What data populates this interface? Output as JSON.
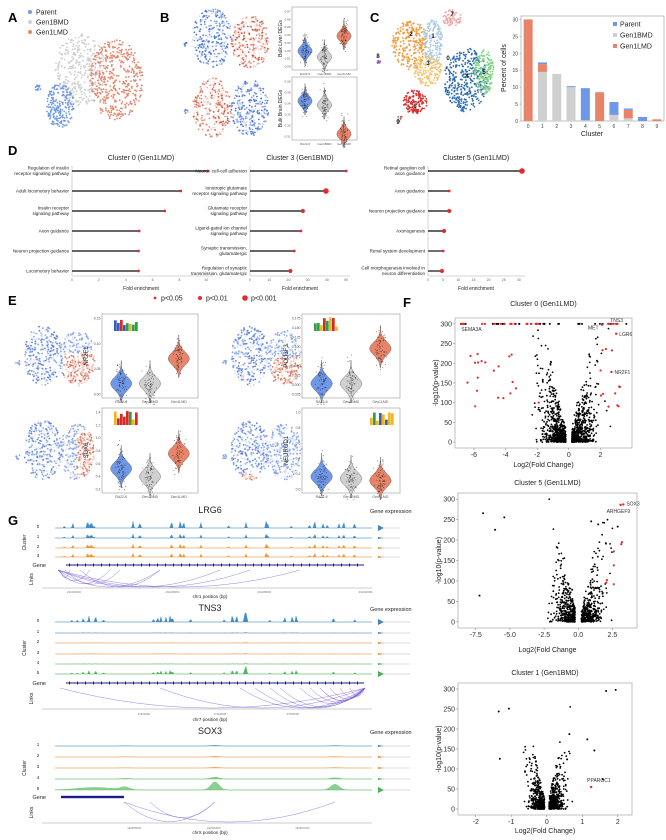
{
  "panel_labels": {
    "A": "A",
    "B": "B",
    "C": "C",
    "D": "D",
    "E": "E",
    "F": "F",
    "G": "G"
  },
  "colors": {
    "parent": "#6f98e8",
    "gen1bmd": "#d0d0d0",
    "gen1lmd": "#e8846a",
    "significant": "#e8282a"
  },
  "chart_data": {
    "umap_groups": {
      "type": "scatter",
      "legend": [
        "Parent",
        "Gen1BMD",
        "Gen1LMD"
      ]
    },
    "bulk_violins": [
      {
        "type": "violin",
        "ylabel": "Bulk Liver DEGs",
        "categories": [
          "RA22-6",
          "Gen1BMD",
          "Gen1LMD"
        ],
        "yticks": [
          "0.00",
          "0.01",
          "0.02",
          "0.03",
          "0.04",
          "0.05",
          "0.06",
          "0.07"
        ],
        "medians": [
          0.025,
          0.018,
          0.045
        ]
      },
      {
        "type": "violin",
        "ylabel": "Bulk Brain DEGs",
        "categories": [
          "RA22-6",
          "Gen1BMD",
          "Gen1LMD"
        ],
        "yticks": [
          "0.31",
          "0.32",
          "0.33",
          "0.34",
          "0.35",
          "0.36"
        ],
        "medians": [
          0.335,
          0.332,
          0.312
        ]
      }
    ],
    "cluster_umap": {
      "type": "scatter",
      "cluster_labels": [
        "0",
        "1",
        "2",
        "3",
        "4",
        "5",
        "6",
        "7",
        "8",
        "9"
      ]
    },
    "cluster_composition": {
      "type": "bar",
      "stacked": true,
      "xlabel": "Cluster",
      "ylabel": "Percent of cells",
      "ylim": [
        0,
        31
      ],
      "yticks": [
        "0",
        "5",
        "10",
        "15",
        "20",
        "25",
        "30"
      ],
      "categories": [
        "0",
        "1",
        "2",
        "3",
        "4",
        "5",
        "6",
        "7",
        "8",
        "9"
      ],
      "legend_position": "top-right",
      "series": [
        {
          "name": "Gen1BMD",
          "values": [
            0,
            14.5,
            13.9,
            10.0,
            0.2,
            0,
            1.8,
            0.8,
            0,
            0
          ]
        },
        {
          "name": "Gen1LMD",
          "values": [
            30.0,
            2.3,
            0,
            0,
            0,
            8.5,
            0,
            2.5,
            0,
            0.5
          ]
        },
        {
          "name": "Parent",
          "values": [
            0,
            0.5,
            0,
            0.3,
            9.5,
            0,
            3.8,
            0.4,
            1.2,
            0
          ]
        }
      ]
    },
    "go_enrichment": [
      {
        "type": "lollipop",
        "title": "Cluster 0 (Gen1LMD)",
        "xlabel": "Fold enrichment",
        "xlim": [
          0,
          10.5
        ],
        "xticks": [
          "0",
          "2",
          "4",
          "6",
          "8",
          "10"
        ],
        "terms": [
          "Regulation of insulin receptor signaling pathway",
          "Adult locomotory behavior",
          "Insulin receptor signaling pathway",
          "Axon guidance",
          "Neuron projection guidance",
          "Locomotory behavior"
        ],
        "values": [
          10.1,
          8.1,
          6.9,
          5.0,
          4.95,
          4.95
        ],
        "pvalue_class": [
          0,
          0,
          0,
          0,
          0,
          0
        ]
      },
      {
        "type": "lollipop",
        "title": "Cluster 3 (Gen1BMD)",
        "xlabel": "Fold enrichment",
        "xlim": [
          0,
          52
        ],
        "xticks": [
          "0",
          "10",
          "20",
          "30",
          "40",
          "50"
        ],
        "terms": [
          "Neuron cell-cell adhesion",
          "Ionotropic glutamate receptor signaling pathway",
          "Glutamate receptor signaling pathway",
          "Ligand-gated ion channel signaling pathway",
          "Synaptic transmission, glutamatergic",
          "Regulation of synaptic transmission, glutamatergic"
        ],
        "values": [
          50,
          39.5,
          27.5,
          26.5,
          23,
          21
        ],
        "pvalue_class": [
          0,
          2,
          1,
          0,
          0,
          1
        ]
      },
      {
        "type": "lollipop",
        "title": "Cluster 5 (Gen1LMD)",
        "xlabel": "Fold enrichment",
        "xlim": [
          0,
          32
        ],
        "xticks": [
          "0",
          "5",
          "10",
          "15",
          "20",
          "25",
          "30"
        ],
        "terms": [
          "Retinal ganglion cell axon guidance",
          "Axon guidance",
          "Neuron projection guidance",
          "Axonogenesis",
          "Renal system development",
          "Cell morphogenesis involved in neuron differentiation"
        ],
        "values": [
          31,
          7,
          7,
          5.3,
          5,
          4.6
        ],
        "pvalue_class": [
          2,
          0,
          1,
          1,
          0,
          1
        ]
      }
    ],
    "pvalue_legend": [
      "p<0.05",
      "p<0.01",
      "p<0.001"
    ],
    "regulon_violins": [
      {
        "type": "violin",
        "ylabel": "NR2F1",
        "categories": [
          "RA22-6",
          "Gen1BMD",
          "Gen1LMD"
        ],
        "yticks": [
          "0.00",
          "0.05",
          "0.10",
          "0.15"
        ],
        "ylim": [
          -0.02,
          0.17
        ],
        "medians": [
          0.015,
          0.012,
          0.07
        ]
      },
      {
        "type": "violin",
        "ylabel": "POU3F3",
        "categories": [
          "RA22-6",
          "Gen1BMD",
          "Gen1LMD"
        ],
        "yticks": [
          "-0.025",
          "0.000",
          "0.025",
          "0.050",
          "0.075",
          "0.100",
          "0.125",
          "0.150",
          "0.175"
        ],
        "ylim": [
          -0.03,
          0.18
        ],
        "medians": [
          0.012,
          0.01,
          0.085
        ]
      },
      {
        "type": "violin",
        "ylabel": "SOX6",
        "categories": [
          "RA22-6",
          "Gen1BMD",
          "Gen1LMD"
        ],
        "yticks": [
          "0.2",
          "0.4",
          "0.6",
          "0.8",
          "1.0",
          "1.2",
          "1.4"
        ],
        "ylim": [
          0.15,
          1.45
        ],
        "medians": [
          0.55,
          0.42,
          0.75
        ]
      },
      {
        "type": "violin",
        "ylabel": "NEUROD1",
        "categories": [
          "RA22-6",
          "Gen1BMD",
          "Gen1LMD"
        ],
        "yticks": [
          "0.0",
          "0.2",
          "0.4",
          "0.6",
          "0.8",
          "1.0"
        ],
        "ylim": [
          -0.08,
          1.08
        ],
        "medians": [
          0.1,
          0.08,
          0.07
        ]
      }
    ],
    "volcanoes": [
      {
        "type": "scatter",
        "title": "Cluster 0 (Gen1LMD)",
        "xlabel": "Log2(Fold Change)",
        "ylabel": "-log10(p-value)",
        "xlim": [
          -7.2,
          4.0
        ],
        "ylim": [
          -15,
          315
        ],
        "xticks": [
          "-6",
          "-4",
          "-2",
          "0",
          "2"
        ],
        "xtick_values": [
          -6,
          -4,
          -2,
          0,
          2
        ],
        "yticks": [
          "0",
          "50",
          "100",
          "150",
          "200",
          "250",
          "300"
        ],
        "labeled_genes": [
          {
            "gene": "SEMA3A",
            "x": -6.8,
            "y": 300
          },
          {
            "gene": "TNS3",
            "x": 3.0,
            "y": 300
          },
          {
            "gene": "MET",
            "x": 2.1,
            "y": 298
          },
          {
            "gene": "LGR6",
            "x": 3.0,
            "y": 275
          },
          {
            "gene": "NR2F1",
            "x": 2.7,
            "y": 178
          }
        ]
      },
      {
        "type": "scatter",
        "title": "Cluster 5 (Gen1LMD)",
        "xlabel": "Log2(Fold Change",
        "ylabel": "-log10(p-value)",
        "xlim": [
          -8.8,
          4.3
        ],
        "ylim": [
          -15,
          315
        ],
        "xticks": [
          "-7.5",
          "-5.0",
          "-2.5",
          "0.0",
          "2.5"
        ],
        "xtick_values": [
          -7.5,
          -5,
          -2.5,
          0,
          2.5
        ],
        "yticks": [
          "0",
          "50",
          "100",
          "150",
          "200",
          "250",
          "300"
        ],
        "labeled_genes": [
          {
            "gene": "SOX3",
            "x": 3.3,
            "y": 287
          },
          {
            "gene": "ARHGEF9",
            "x": 3.1,
            "y": 286
          }
        ]
      },
      {
        "type": "scatter",
        "title": "Cluster 1 (Gen1BMD)",
        "xlabel": "Log2(Fold Change)",
        "ylabel": "-log10(p-value)",
        "xlim": [
          -2.5,
          2.4
        ],
        "ylim": [
          -15,
          315
        ],
        "xticks": [
          "-2",
          "-1",
          "0",
          "1",
          "2"
        ],
        "xtick_values": [
          -2,
          -1,
          0,
          1,
          2
        ],
        "yticks": [
          "0",
          "50",
          "100",
          "150",
          "200",
          "250",
          "300"
        ],
        "labeled_genes": [
          {
            "gene": "PPARGC1",
            "x": 1.25,
            "y": 55
          }
        ]
      }
    ],
    "coverage_tracks": [
      {
        "type": "area",
        "title": "LRG6",
        "clusters": [
          "0",
          "1",
          "2",
          "3"
        ],
        "cluster_axis_label": "Cluster",
        "gene_label": "Gene",
        "links_label": "Links",
        "xlabel": "chr1 position (bp)",
        "side_label": "Gene expression",
        "xticks": [
          "202200000",
          "202240000",
          "202280000",
          "202320000"
        ]
      },
      {
        "type": "area",
        "title": "TNS3",
        "clusters": [
          "0",
          "1",
          "2",
          "3",
          "4",
          "5"
        ],
        "cluster_axis_label": "Cluster",
        "gene_label": "Gene",
        "links_label": "Links",
        "xlabel": "chr7 position (bp)",
        "side_label": "Gene expression",
        "xticks": [
          "47300000",
          "47400000",
          "47500000"
        ]
      },
      {
        "type": "area",
        "title": "SOX3",
        "clusters": [
          "1",
          "2",
          "3",
          "4",
          "5"
        ],
        "cluster_axis_label": "Cluster",
        "gene_label": "Gene",
        "links_label": "Links",
        "xlabel": "chrX position (bp)",
        "side_label": "Gene expression",
        "xticks": [
          "140505000",
          "140506000",
          "140507000"
        ]
      }
    ]
  }
}
